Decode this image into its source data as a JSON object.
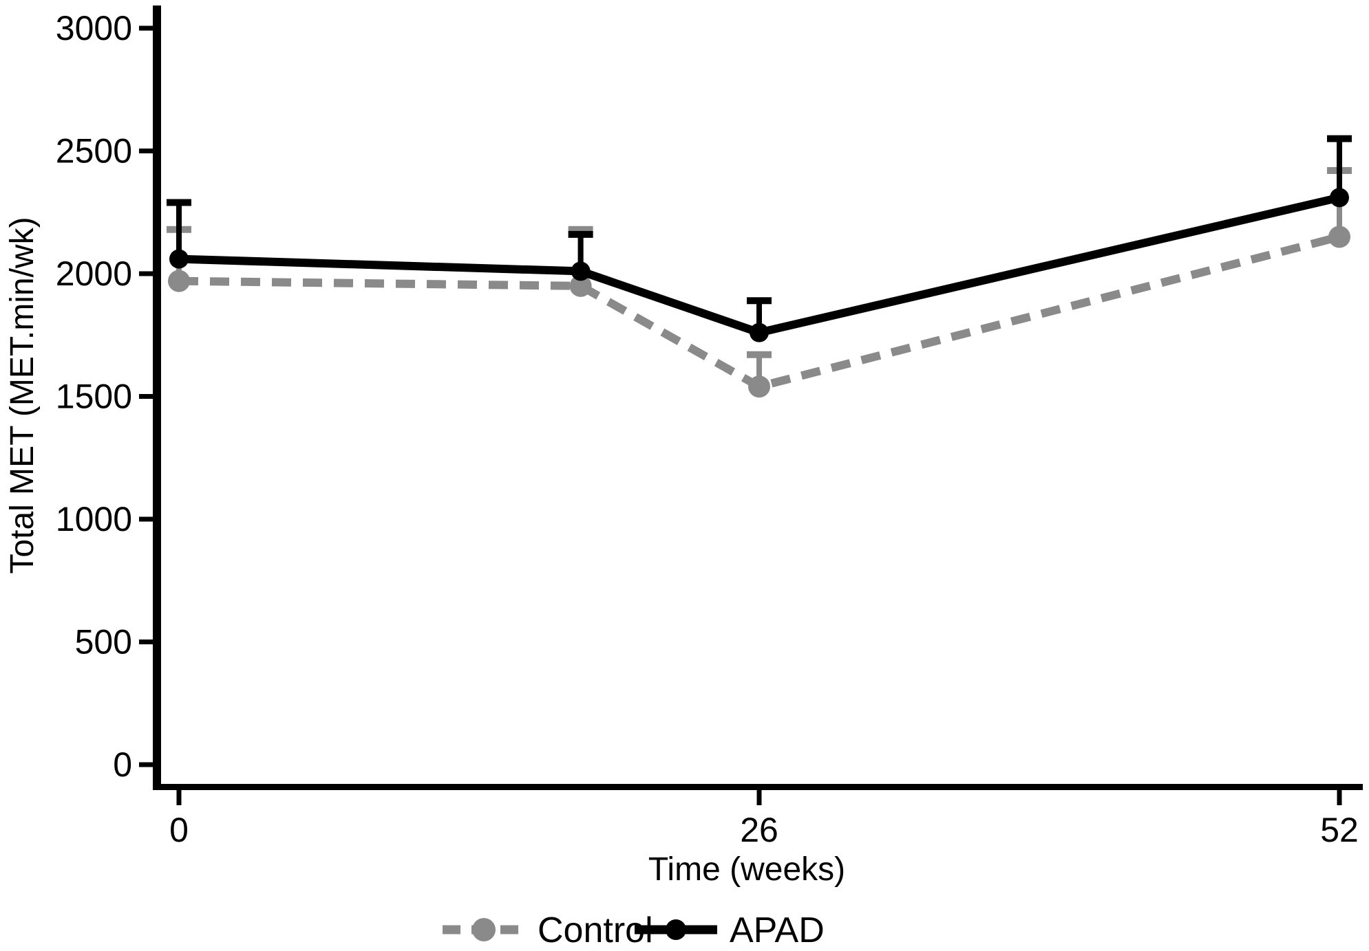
{
  "figure": {
    "background": "#ffffff",
    "title": "",
    "xlabel": "Time (weeks)",
    "ylabel": "Total MET (MET.min/wk)"
  },
  "chart_data": {
    "type": "line",
    "x": [
      0,
      18,
      26,
      52
    ],
    "x_tick_values": [
      0,
      26,
      52
    ],
    "x_tick_labels": [
      "0",
      "26",
      "52"
    ],
    "y_tick_values": [
      0,
      500,
      1000,
      1500,
      2000,
      2500,
      3000
    ],
    "y_tick_labels": [
      "0",
      "500",
      "1000",
      "1500",
      "2000",
      "2500",
      "3000"
    ],
    "xlim": [
      0,
      52
    ],
    "ylim": [
      0,
      3000
    ],
    "xlabel": "Time (weeks)",
    "ylabel": "Total MET (MET.min/wk)",
    "grid": false,
    "error_bars": "upper_only",
    "legend_position": "bottom-center",
    "series": [
      {
        "name": "Control",
        "color": "#8a8a8a",
        "line_style": "dashed",
        "marker": "circle",
        "values": [
          1970,
          1950,
          1540,
          2150
        ],
        "upper_error_tops": [
          2180,
          2180,
          1670,
          2420
        ]
      },
      {
        "name": "APAD",
        "color": "#000000",
        "line_style": "solid",
        "marker": "circle",
        "values": [
          2060,
          2010,
          1760,
          2310
        ],
        "upper_error_tops": [
          2290,
          2160,
          1890,
          2550
        ]
      }
    ]
  },
  "legend": {
    "items": [
      {
        "label": "Control"
      },
      {
        "label": "APAD"
      }
    ]
  }
}
